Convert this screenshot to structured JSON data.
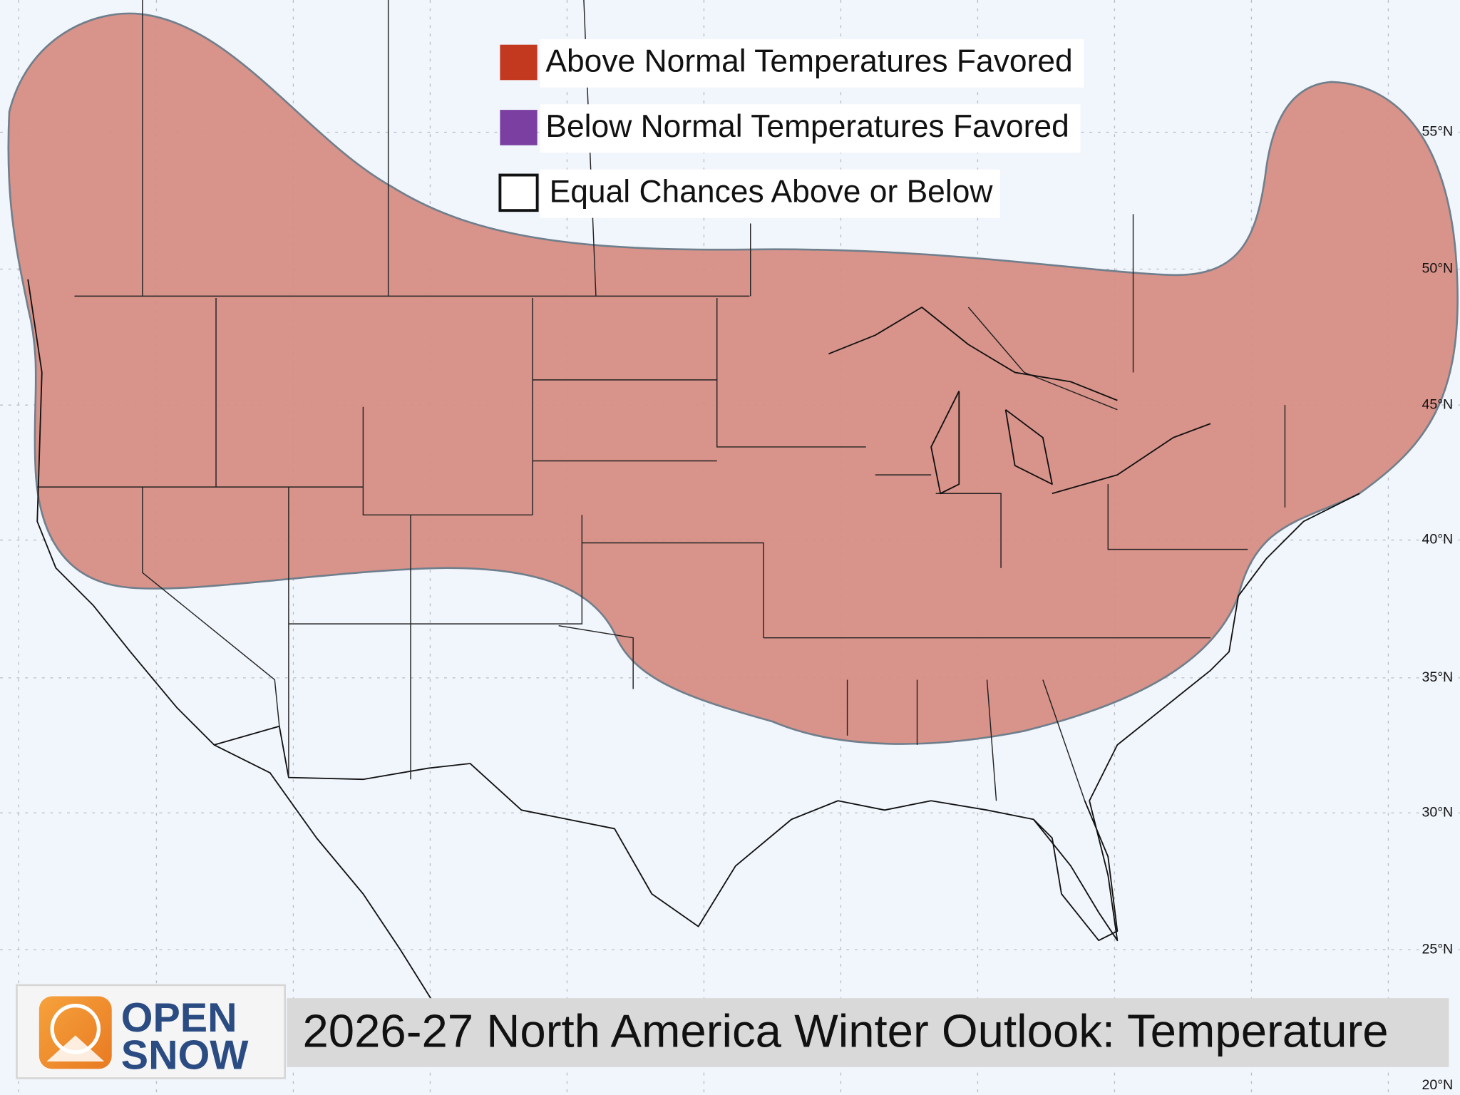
{
  "map": {
    "title": "2026-27 North America Winter Outlook: Temperature",
    "legend": [
      {
        "label": "Above Normal Temperatures Favored",
        "color": "#c2391f"
      },
      {
        "label": "Below Normal Temperatures Favored",
        "color": "#7a3fa0"
      },
      {
        "label": "Equal Chances Above or Below",
        "color": "#ffffff"
      }
    ],
    "latitude_labels": [
      "55°N",
      "50°N",
      "45°N",
      "40°N",
      "35°N",
      "30°N",
      "25°N",
      "20°N"
    ],
    "logo": {
      "line1": "OPEN",
      "line2": "SNOW"
    }
  }
}
